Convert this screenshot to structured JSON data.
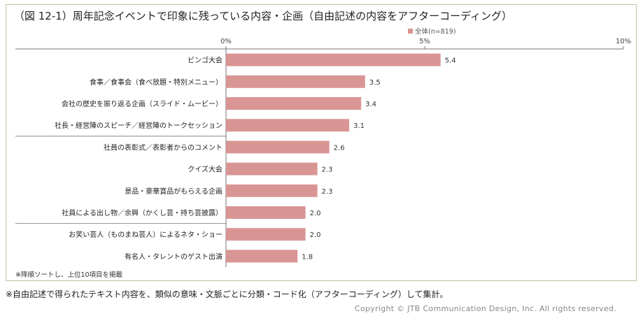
{
  "title": "（図 12-1）周年記念イベントで印象に残っている内容・企画（自由記述の内容をアフターコーディング）",
  "sort_note": "※降順ソートし、上位10項目を掲載",
  "footnote": "※自由記述で得られたテキスト内容を、類似の意味・文脈ごとに分類・コード化（アフターコーディング）して集計。",
  "copyright": "Copyright © JTB Communication Design, Inc. All rights reserved.",
  "colors": {
    "bar": "#d99594",
    "axis": "#777777",
    "frame": "#b8c7a0"
  },
  "chart_data": {
    "type": "bar",
    "orientation": "horizontal",
    "categories": [
      "ビンゴ大会",
      "食事／食事会（食べ放題・特別メニュー）",
      "会社の歴史を振り返る企画（スライド・ムービー）",
      "社長・経営陣のスピーチ／経営陣のトークセッション",
      "社員の表彰式／表彰者からのコメント",
      "クイズ大会",
      "景品・豪華賞品がもらえる企画",
      "社員による出し物／余興（かくし芸・持ち芸披露）",
      "お笑い芸人（ものまね芸人）によるネタ・ショー",
      "有名人・タレントのゲスト出演"
    ],
    "series": [
      {
        "name": "全体(n=819)",
        "values": [
          5.4,
          3.5,
          3.4,
          3.1,
          2.6,
          2.3,
          2.3,
          2.0,
          2.0,
          1.8
        ]
      }
    ],
    "value_labels": [
      "5.4",
      "3.5",
      "3.4",
      "3.1",
      "2.6",
      "2.3",
      "2.3",
      "2.0",
      "2.0",
      "1.8"
    ],
    "xlim": [
      0,
      10
    ],
    "ticks": [
      0,
      5,
      10
    ],
    "tick_labels": [
      "0%",
      "5%",
      "10%"
    ],
    "legend_position": "top-right",
    "grid": false
  }
}
